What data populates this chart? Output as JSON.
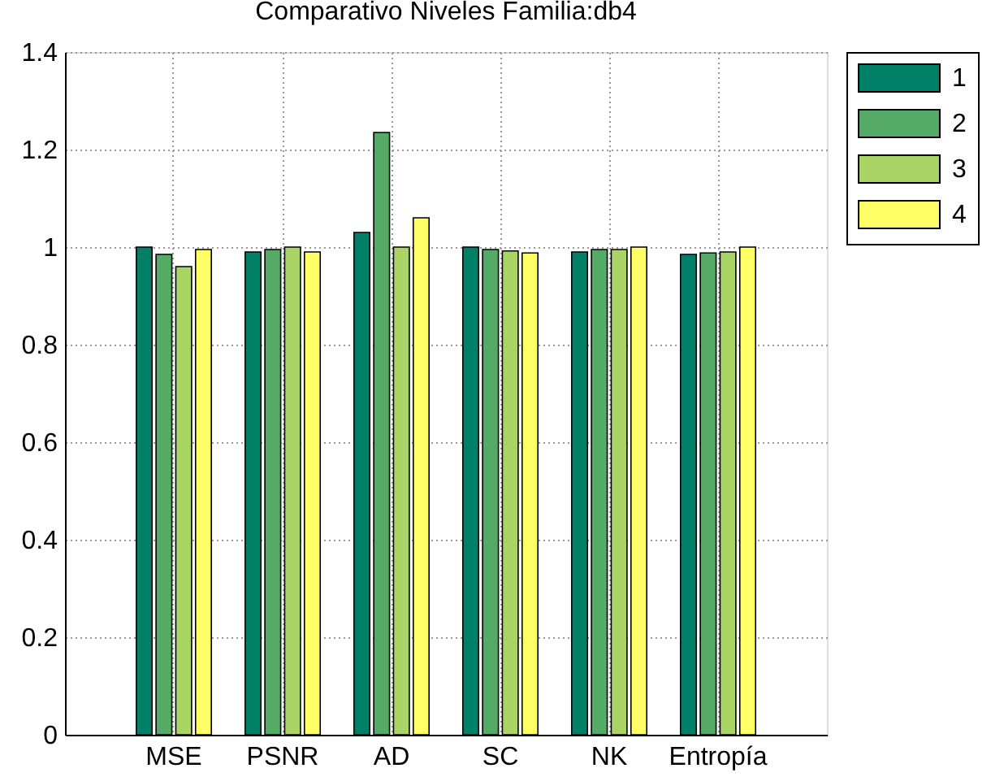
{
  "chart_data": {
    "type": "bar",
    "title": "Comparativo Niveles Familia:db4",
    "categories": [
      "MSE",
      "PSNR",
      "AD",
      "SC",
      "NK",
      "Entropía"
    ],
    "series": [
      {
        "name": "1",
        "color": "#008066",
        "values": [
          1.0,
          0.99,
          1.03,
          1.0,
          0.99,
          0.985
        ]
      },
      {
        "name": "2",
        "color": "#55aa66",
        "values": [
          0.985,
          0.995,
          1.235,
          0.995,
          0.995,
          0.988
        ]
      },
      {
        "name": "3",
        "color": "#aad466",
        "values": [
          0.96,
          1.0,
          1.0,
          0.992,
          0.995,
          0.99
        ]
      },
      {
        "name": "4",
        "color": "#ffff66",
        "values": [
          0.995,
          0.99,
          1.06,
          0.988,
          1.0,
          1.0
        ]
      }
    ],
    "ylim": [
      0,
      1.4
    ],
    "yticks": [
      0,
      0.2,
      0.4,
      0.6,
      0.8,
      1,
      1.2,
      1.4
    ],
    "grid": true,
    "legend": "top right"
  }
}
